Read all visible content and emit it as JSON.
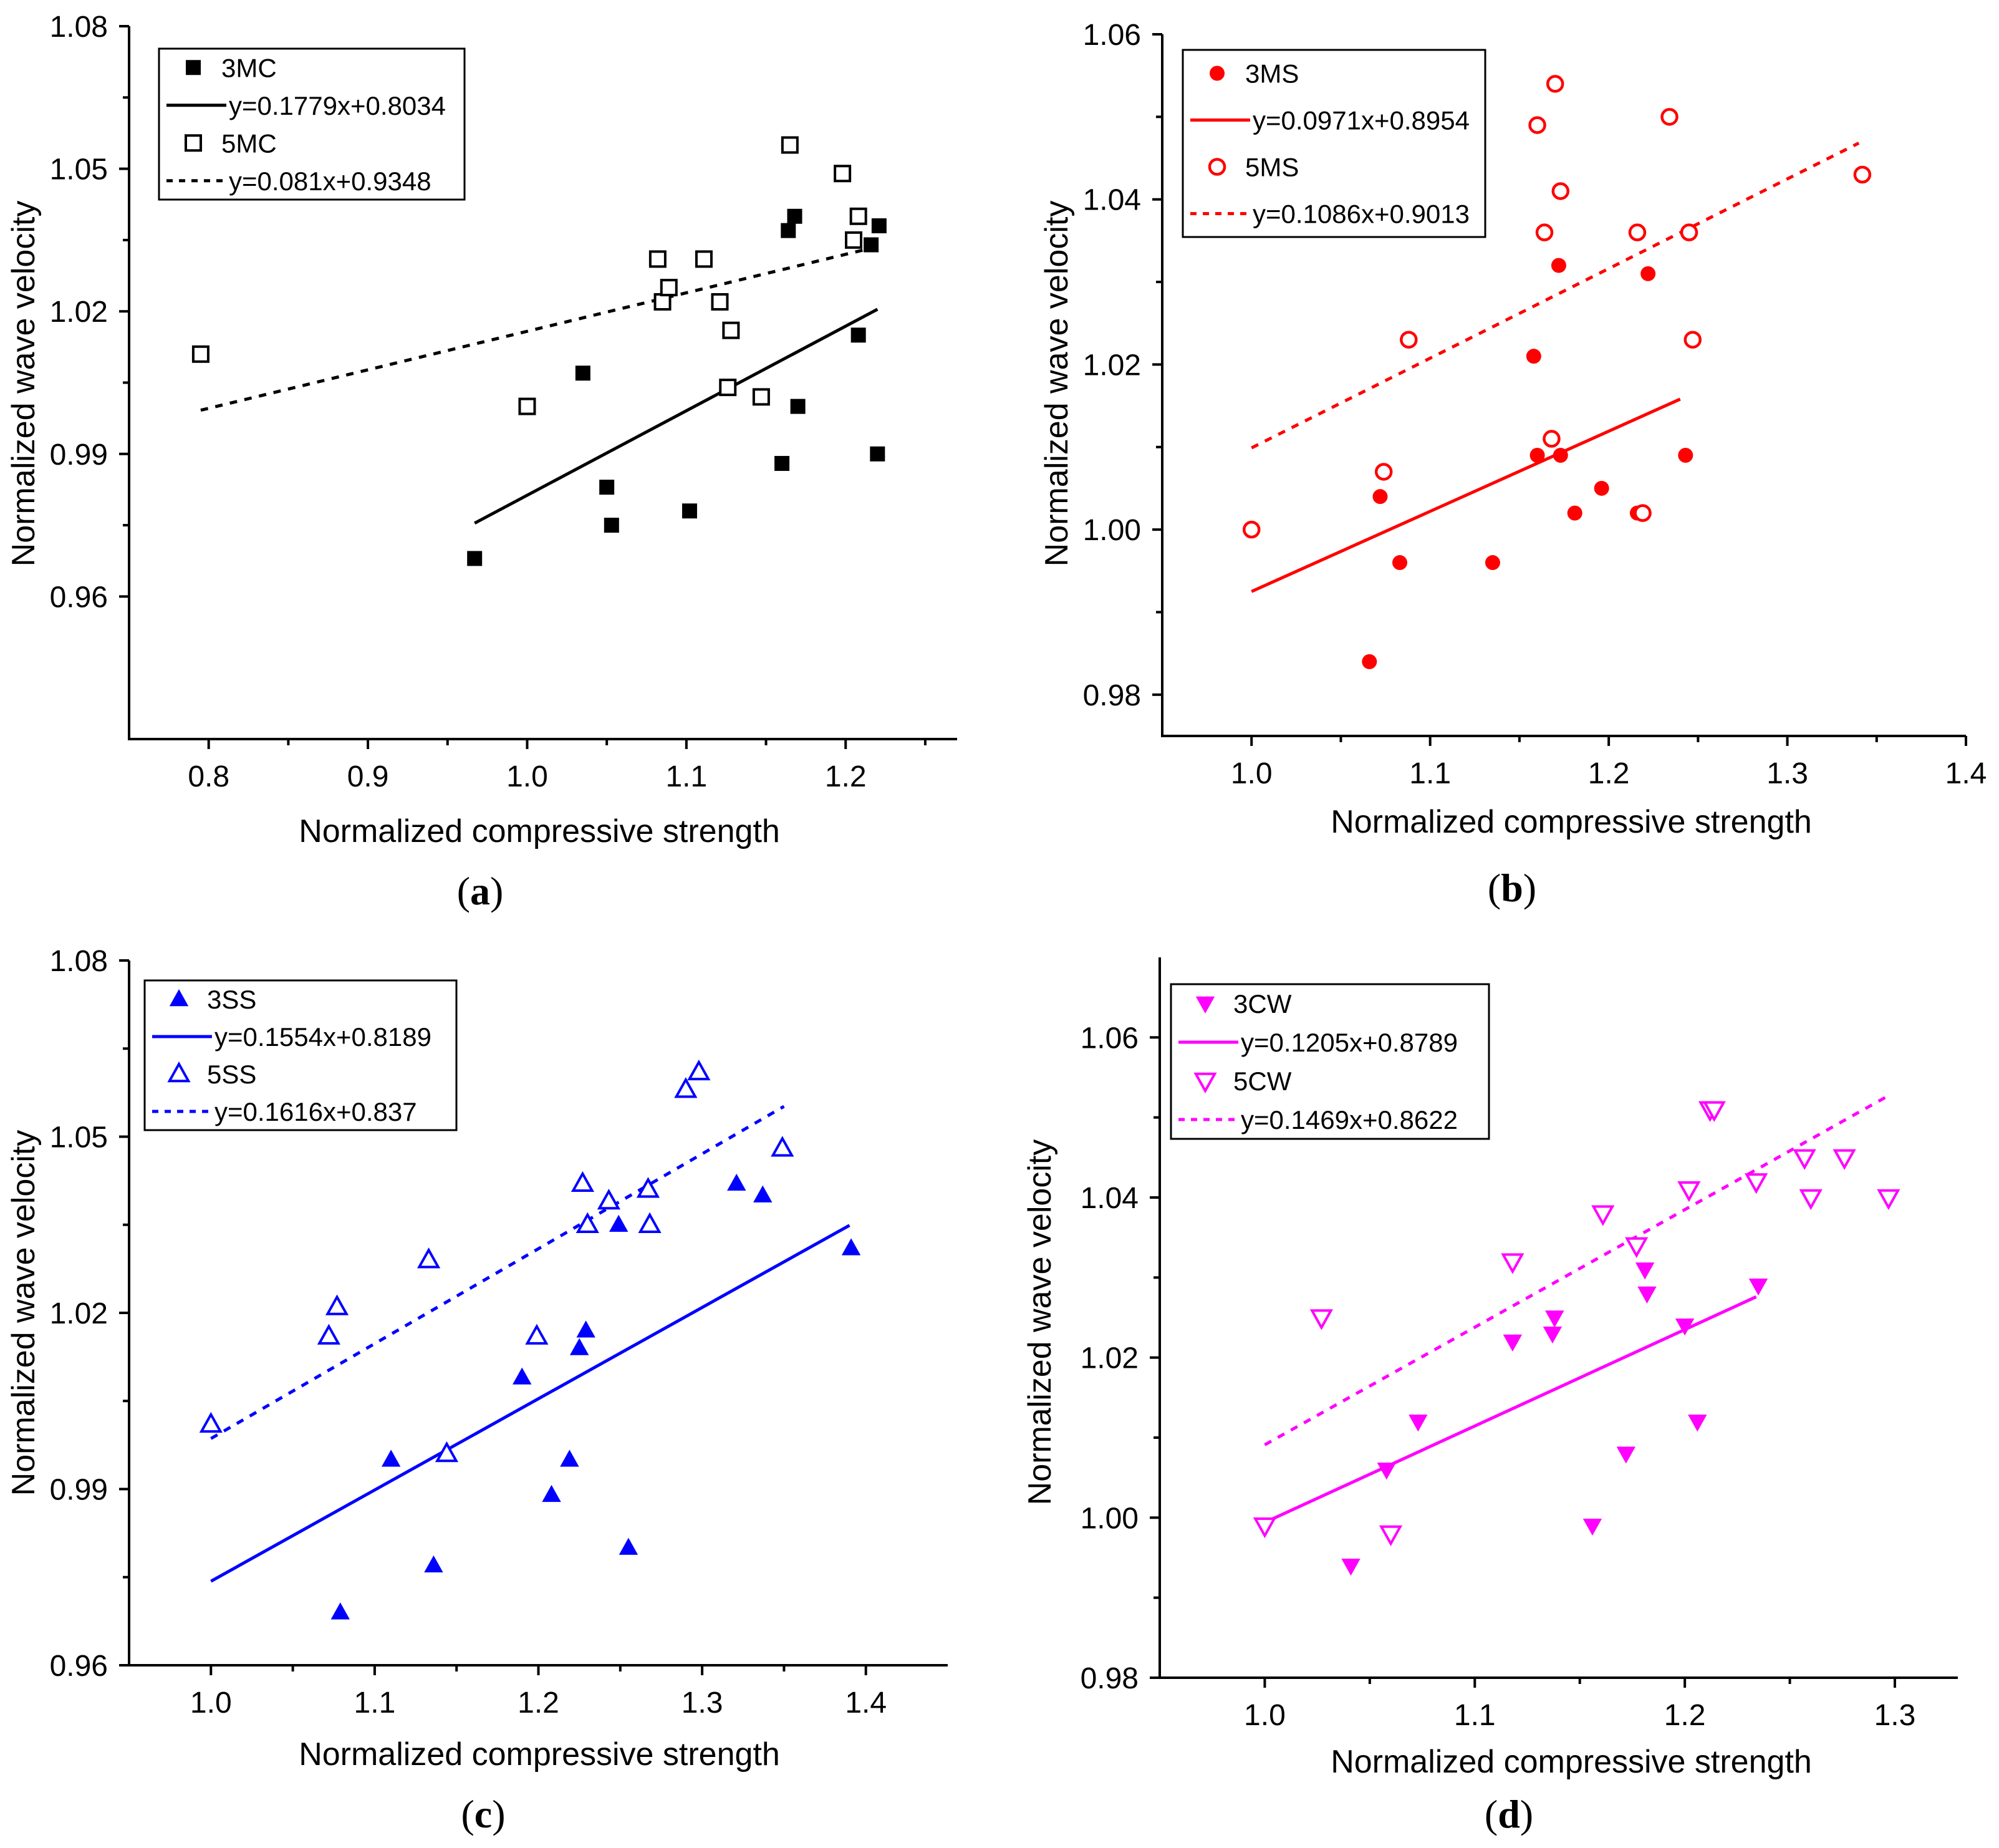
{
  "chart_data": [
    {
      "id": "a",
      "type": "scatter",
      "panel_label_open": "(",
      "panel_label_letter": "a",
      "panel_label_close": ")",
      "color": "#000000",
      "xlabel": "Normalized compressive strength",
      "ylabel": "Normalized wave velocity",
      "xlim": [
        0.75,
        1.27
      ],
      "ylim": [
        0.93,
        1.08
      ],
      "xticks": [
        0.8,
        0.9,
        1.0,
        1.1,
        1.2
      ],
      "xtick_labels": [
        "0.8",
        "0.9",
        "1.0",
        "1.1",
        "1.2"
      ],
      "yticks": [
        0.96,
        0.99,
        1.02,
        1.05,
        1.08
      ],
      "ytick_labels": [
        "0.96",
        "0.99",
        "1.02",
        "1.05",
        "1.08"
      ],
      "marker": "square",
      "legend_position": "top-left",
      "series": [
        {
          "name": "3MC",
          "filled": true,
          "fit_label": "y=0.1779x+0.8034",
          "fit_style": "solid",
          "slope": 0.1779,
          "intercept": 0.8034,
          "fit_x_range": [
            0.967,
            1.22
          ],
          "x": [
            0.967,
            1.035,
            1.05,
            1.053,
            1.102,
            1.16,
            1.164,
            1.168,
            1.17,
            1.208,
            1.216,
            1.221,
            1.22
          ],
          "y": [
            0.968,
            1.007,
            0.983,
            0.975,
            0.978,
            0.988,
            1.037,
            1.04,
            1.0,
            1.015,
            1.034,
            1.038,
            0.99
          ]
        },
        {
          "name": "5MC",
          "filled": false,
          "fit_label": "y=0.081x+0.9348",
          "fit_style": "dotted",
          "slope": 0.081,
          "intercept": 0.9348,
          "fit_x_range": [
            0.795,
            1.22
          ],
          "x": [
            0.795,
            1.0,
            1.082,
            1.085,
            1.089,
            1.111,
            1.121,
            1.126,
            1.128,
            1.147,
            1.165,
            1.198,
            1.205,
            1.208
          ],
          "y": [
            1.011,
            1.0,
            1.031,
            1.022,
            1.025,
            1.031,
            1.022,
            1.004,
            1.016,
            1.002,
            1.055,
            1.049,
            1.035,
            1.04
          ]
        }
      ]
    },
    {
      "id": "b",
      "type": "scatter",
      "panel_label_open": "(",
      "panel_label_letter": "b",
      "panel_label_close": ")",
      "color": "#ff0000",
      "xlabel": "Normalized compressive strength",
      "ylabel": "Normalized wave velocity",
      "xlim": [
        0.95,
        1.4
      ],
      "ylim": [
        0.975,
        1.06
      ],
      "xticks": [
        1.0,
        1.1,
        1.2,
        1.3,
        1.4
      ],
      "xtick_labels": [
        "1.0",
        "1.1",
        "1.2",
        "1.3",
        "1.4"
      ],
      "yticks": [
        0.98,
        1.0,
        1.02,
        1.04,
        1.06
      ],
      "ytick_labels": [
        "0.98",
        "1.00",
        "1.02",
        "1.04",
        "1.06"
      ],
      "marker": "circle",
      "legend_position": "top-left",
      "series": [
        {
          "name": "3MS",
          "filled": true,
          "fit_label": "y=0.0971x+0.8954",
          "fit_style": "solid",
          "slope": 0.0971,
          "intercept": 0.8954,
          "fit_x_range": [
            1.0,
            1.24
          ],
          "x": [
            1.066,
            1.072,
            1.083,
            1.135,
            1.158,
            1.16,
            1.172,
            1.173,
            1.181,
            1.196,
            1.216,
            1.222,
            1.243
          ],
          "y": [
            0.984,
            1.004,
            0.996,
            0.996,
            1.021,
            1.009,
            1.032,
            1.009,
            1.002,
            1.005,
            1.002,
            1.031,
            1.009
          ]
        },
        {
          "name": "5MS",
          "filled": false,
          "fit_label": "y=0.1086x+0.9013",
          "fit_style": "dotted",
          "slope": 0.1086,
          "intercept": 0.9013,
          "fit_x_range": [
            1.0,
            1.34
          ],
          "x": [
            1.0,
            1.074,
            1.088,
            1.16,
            1.164,
            1.168,
            1.17,
            1.173,
            1.216,
            1.219,
            1.234,
            1.245,
            1.247,
            1.342
          ],
          "y": [
            1.0,
            1.007,
            1.023,
            1.049,
            1.036,
            1.011,
            1.054,
            1.041,
            1.036,
            1.002,
            1.05,
            1.036,
            1.023,
            1.043
          ]
        }
      ]
    },
    {
      "id": "c",
      "type": "scatter",
      "panel_label_open": "(",
      "panel_label_letter": "c",
      "panel_label_close": ")",
      "color": "#0000ff",
      "xlabel": "Normalized compressive strength",
      "ylabel": "Normalized wave velocity",
      "xlim": [
        0.95,
        1.45
      ],
      "ylim": [
        0.96,
        1.08
      ],
      "xticks": [
        1.0,
        1.1,
        1.2,
        1.3,
        1.4
      ],
      "xtick_labels": [
        "1.0",
        "1.1",
        "1.2",
        "1.3",
        "1.4"
      ],
      "yticks": [
        0.96,
        0.99,
        1.02,
        1.05,
        1.08
      ],
      "ytick_labels": [
        "0.96",
        "0.99",
        "1.02",
        "1.05",
        "1.08"
      ],
      "marker": "triangle-up",
      "legend_position": "top-left",
      "series": [
        {
          "name": "3SS",
          "filled": true,
          "fit_label": "y=0.1554x+0.8189",
          "fit_style": "solid",
          "slope": 0.1554,
          "intercept": 0.8189,
          "fit_x_range": [
            1.0,
            1.39
          ],
          "x": [
            1.079,
            1.11,
            1.136,
            1.19,
            1.208,
            1.219,
            1.225,
            1.229,
            1.249,
            1.255,
            1.321,
            1.337,
            1.391
          ],
          "y": [
            0.969,
            0.995,
            0.977,
            1.009,
            0.989,
            0.995,
            1.014,
            1.017,
            1.035,
            0.98,
            1.042,
            1.04,
            1.031
          ]
        },
        {
          "name": "5SS",
          "filled": false,
          "fit_label": "y=0.1616x+0.837",
          "fit_style": "dotted",
          "slope": 0.1616,
          "intercept": 0.837,
          "fit_x_range": [
            1.0,
            1.35
          ],
          "x": [
            1.0,
            1.072,
            1.077,
            1.133,
            1.144,
            1.199,
            1.227,
            1.23,
            1.243,
            1.267,
            1.268,
            1.29,
            1.298,
            1.349
          ],
          "y": [
            1.001,
            1.016,
            1.021,
            1.029,
            0.996,
            1.016,
            1.042,
            1.035,
            1.039,
            1.041,
            1.035,
            1.058,
            1.061,
            1.048
          ]
        }
      ]
    },
    {
      "id": "d",
      "type": "scatter",
      "panel_label_open": "(",
      "panel_label_letter": "d",
      "panel_label_close": ")",
      "color": "#ff00ff",
      "xlabel": "Normalized compressive strength",
      "ylabel": "Normalized wave velocity",
      "xlim": [
        0.95,
        1.33
      ],
      "ylim": [
        0.98,
        1.07
      ],
      "xticks": [
        1.0,
        1.1,
        1.2,
        1.3
      ],
      "xtick_labels": [
        "1.0",
        "1.1",
        "1.2",
        "1.3"
      ],
      "yticks": [
        0.98,
        1.0,
        1.02,
        1.04,
        1.06
      ],
      "ytick_labels": [
        "0.98",
        "1.00",
        "1.02",
        "1.04",
        "1.06"
      ],
      "marker": "triangle-down",
      "legend_position": "top-left",
      "series": [
        {
          "name": "3CW",
          "filled": true,
          "fit_label": "y=0.1205x+0.8789",
          "fit_style": "solid",
          "slope": 0.1205,
          "intercept": 0.8789,
          "fit_x_range": [
            1.0,
            1.234
          ],
          "x": [
            1.041,
            1.058,
            1.073,
            1.118,
            1.137,
            1.138,
            1.156,
            1.172,
            1.181,
            1.182,
            1.2,
            1.206,
            1.235
          ],
          "y": [
            0.994,
            1.006,
            1.012,
            1.022,
            1.023,
            1.025,
            0.999,
            1.008,
            1.031,
            1.028,
            1.024,
            1.012,
            1.029
          ]
        },
        {
          "name": "5CW",
          "filled": false,
          "fit_label": "y=0.1469x+0.8622",
          "fit_style": "dotted",
          "slope": 0.1469,
          "intercept": 0.8622,
          "fit_x_range": [
            1.0,
            1.297
          ],
          "x": [
            1.0,
            1.027,
            1.06,
            1.118,
            1.161,
            1.177,
            1.202,
            1.212,
            1.214,
            1.234,
            1.257,
            1.26,
            1.276,
            1.297
          ],
          "y": [
            0.999,
            1.025,
            0.998,
            1.032,
            1.038,
            1.034,
            1.041,
            1.051,
            1.051,
            1.042,
            1.045,
            1.04,
            1.045,
            1.04
          ]
        }
      ]
    }
  ]
}
